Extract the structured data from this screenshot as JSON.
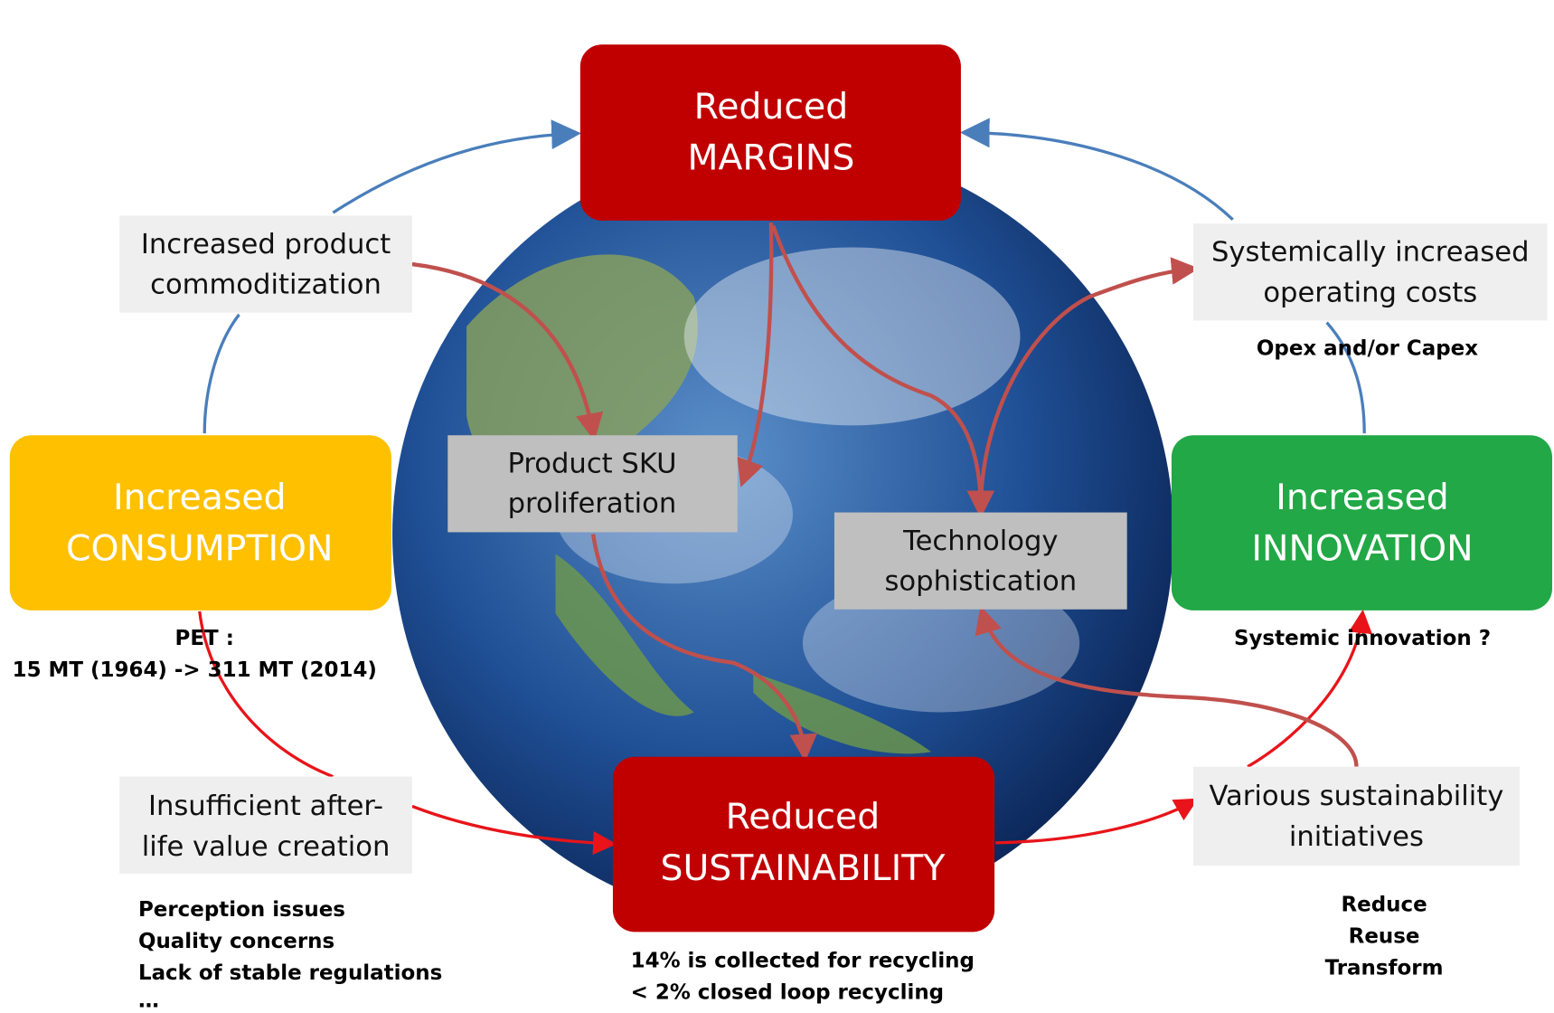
{
  "nodes": [
    {
      "lines": [
        "Reduced",
        "MARGINS"
      ]
    },
    {
      "lines": [
        "Increased",
        "CONSUMPTION"
      ],
      "notes": [
        "PET :",
        "15 MT (1964) -> 311 MT (2014)"
      ]
    },
    {
      "lines": [
        "Increased",
        "INNOVATION"
      ],
      "notes": [
        "Systemic innovation ?"
      ]
    },
    {
      "lines": [
        "Reduced",
        "SUSTAINABILITY"
      ],
      "notes": [
        "14% is collected for recycling",
        "< 2% closed loop recycling"
      ]
    },
    {
      "lines": [
        "Increased product",
        "commoditization"
      ]
    },
    {
      "lines": [
        "Systemically increased",
        "operating costs"
      ],
      "notes": [
        "Opex and/or Capex"
      ]
    },
    {
      "lines": [
        "Insufficient after-",
        "life value creation"
      ],
      "notes": [
        "Perception issues",
        "Quality concerns",
        "Lack of stable regulations",
        "…"
      ]
    },
    {
      "lines": [
        "Various sustainability",
        "initiatives"
      ],
      "notes": [
        "Reduce",
        "Reuse",
        "Transform"
      ]
    },
    {
      "lines": [
        "Product SKU",
        "proliferation"
      ]
    },
    {
      "lines": [
        "Technology",
        "sophistication"
      ]
    }
  ]
}
